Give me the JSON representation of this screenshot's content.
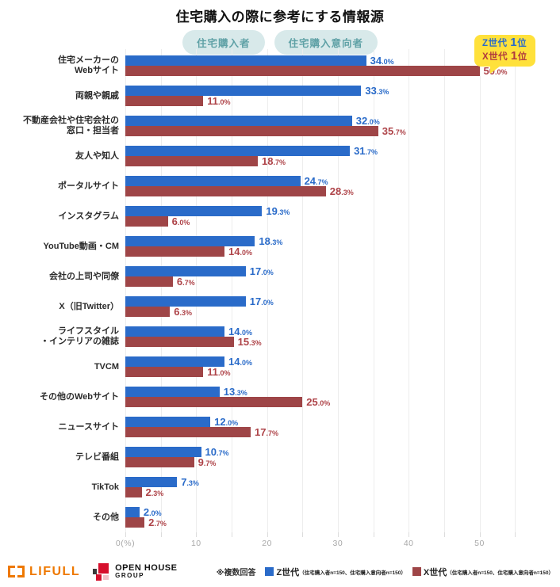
{
  "title": "住宅購入の際に参考にする情報源",
  "badges": [
    "住宅購入者",
    "住宅購入意向者"
  ],
  "callout": {
    "lines": [
      {
        "label": "Z世代",
        "rank_num": "1",
        "rank_suffix": "位",
        "color": "#2a6bc9"
      },
      {
        "label": "X世代",
        "rank_num": "1",
        "rank_suffix": "位",
        "color": "#b03a3e"
      }
    ],
    "background": "#ffe13b"
  },
  "chart_data": {
    "type": "bar",
    "orientation": "horizontal",
    "title": "住宅購入の際に参考にする情報源",
    "xlim": [
      0,
      55
    ],
    "grid_step": 5,
    "ticks": [
      {
        "value": 0,
        "label": "0(%)"
      },
      {
        "value": 10,
        "label": "10"
      },
      {
        "value": 20,
        "label": "20"
      },
      {
        "value": 30,
        "label": "30"
      },
      {
        "value": 40,
        "label": "40"
      },
      {
        "value": 50,
        "label": "50"
      }
    ],
    "categories": [
      {
        "lines": [
          "住宅メーカーの",
          "Webサイト"
        ]
      },
      {
        "lines": [
          "両親や親戚"
        ]
      },
      {
        "lines": [
          "不動産会社や住宅会社の",
          "窓口・担当者"
        ]
      },
      {
        "lines": [
          "友人や知人"
        ]
      },
      {
        "lines": [
          "ポータルサイト"
        ]
      },
      {
        "lines": [
          "インスタグラム"
        ]
      },
      {
        "lines": [
          "YouTube動画・CM"
        ]
      },
      {
        "lines": [
          "会社の上司や同僚"
        ]
      },
      {
        "lines": [
          "X（旧Twitter）"
        ]
      },
      {
        "lines": [
          "ライフスタイル",
          "・インテリアの雑誌"
        ]
      },
      {
        "lines": [
          "TVCM"
        ]
      },
      {
        "lines": [
          "その他のWebサイト"
        ]
      },
      {
        "lines": [
          "ニュースサイト"
        ]
      },
      {
        "lines": [
          "テレビ番組"
        ]
      },
      {
        "lines": [
          "TikTok"
        ]
      },
      {
        "lines": [
          "その他"
        ]
      }
    ],
    "series": [
      {
        "name": "Z世代",
        "color": "#2a6bc9",
        "label_color": "#2a6bc9",
        "values": [
          34.0,
          33.3,
          32.0,
          31.7,
          24.7,
          19.3,
          18.3,
          17.0,
          17.0,
          14.0,
          14.0,
          13.3,
          12.0,
          10.7,
          7.3,
          2.0
        ]
      },
      {
        "name": "X世代",
        "color": "#9e4547",
        "label_color": "#ae4348",
        "values": [
          50.0,
          11.0,
          35.7,
          18.7,
          28.3,
          6.0,
          14.0,
          6.7,
          6.3,
          15.3,
          11.0,
          25.0,
          17.7,
          9.7,
          2.3,
          2.7
        ]
      }
    ],
    "value_suffix": "%"
  },
  "legend": {
    "note": "※複数回答",
    "items": [
      {
        "label": "Z世代",
        "detail": "（住宅購入者n=150、住宅購入意向者n=150）",
        "color": "#2a6bc9"
      },
      {
        "label": "X世代",
        "detail": "（住宅購入者n=150、住宅購入意向者n=150）",
        "color": "#9e4547"
      }
    ]
  },
  "footer": {
    "lifull": "LIFULL",
    "openhouse_line1": "OPEN HOUSE",
    "openhouse_line2": "GROUP",
    "lifull_color": "#ee7800",
    "openhouse_red": "#d60f2c"
  }
}
